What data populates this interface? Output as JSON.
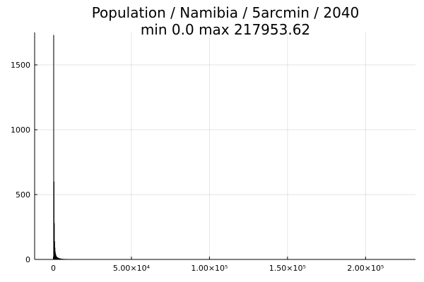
{
  "chart_data": {
    "type": "bar",
    "title": "Population / Namibia / 5arcmin / 2040",
    "subtitle": "min 0.0  max 217953.62",
    "xlabel": "",
    "ylabel": "",
    "xlim": [
      -12000,
      232000
    ],
    "ylim": [
      0,
      1750
    ],
    "grid": true,
    "legend": "none",
    "x_ticks": [
      {
        "value": 0,
        "label": "0"
      },
      {
        "value": 50000,
        "label": "5.00×10⁴"
      },
      {
        "value": 100000,
        "label": "1.00×10⁵"
      },
      {
        "value": 150000,
        "label": "1.50×10⁵"
      },
      {
        "value": 200000,
        "label": "2.00×10⁵"
      }
    ],
    "y_ticks": [
      {
        "value": 0,
        "label": "0"
      },
      {
        "value": 500,
        "label": "500"
      },
      {
        "value": 1000,
        "label": "1000"
      },
      {
        "value": 1500,
        "label": "1500"
      }
    ],
    "bin_width": 200,
    "bins": [
      {
        "x": 0,
        "count": 1730
      },
      {
        "x": 200,
        "count": 600
      },
      {
        "x": 400,
        "count": 280
      },
      {
        "x": 600,
        "count": 140
      },
      {
        "x": 800,
        "count": 90
      },
      {
        "x": 1000,
        "count": 60
      },
      {
        "x": 1200,
        "count": 45
      },
      {
        "x": 1400,
        "count": 35
      },
      {
        "x": 1600,
        "count": 28
      },
      {
        "x": 1800,
        "count": 22
      },
      {
        "x": 2000,
        "count": 20
      },
      {
        "x": 2200,
        "count": 18
      },
      {
        "x": 2400,
        "count": 16
      },
      {
        "x": 2600,
        "count": 14
      },
      {
        "x": 2800,
        "count": 13
      },
      {
        "x": 3000,
        "count": 12
      },
      {
        "x": 3400,
        "count": 10
      },
      {
        "x": 3800,
        "count": 9
      },
      {
        "x": 4200,
        "count": 8
      },
      {
        "x": 4600,
        "count": 7
      },
      {
        "x": 5000,
        "count": 6
      },
      {
        "x": 5600,
        "count": 5
      },
      {
        "x": 6200,
        "count": 5
      },
      {
        "x": 7000,
        "count": 4
      },
      {
        "x": 8000,
        "count": 4
      },
      {
        "x": 9000,
        "count": 3
      },
      {
        "x": 10000,
        "count": 3
      },
      {
        "x": 11000,
        "count": 2
      },
      {
        "x": 12000,
        "count": 2
      },
      {
        "x": 14000,
        "count": 2
      },
      {
        "x": 16000,
        "count": 1
      },
      {
        "x": 18000,
        "count": 1
      },
      {
        "x": 20000,
        "count": 1
      },
      {
        "x": 23000,
        "count": 1
      },
      {
        "x": 26000,
        "count": 1
      },
      {
        "x": 30000,
        "count": 1
      },
      {
        "x": 35000,
        "count": 1
      },
      {
        "x": 45000,
        "count": 1
      },
      {
        "x": 60000,
        "count": 1
      },
      {
        "x": 217800,
        "count": 1
      }
    ],
    "bar_color": "#000000"
  }
}
